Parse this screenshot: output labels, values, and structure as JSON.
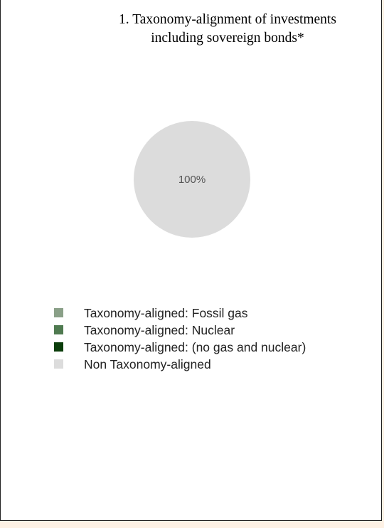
{
  "chart_data": {
    "type": "pie",
    "title_lines": [
      "1. Taxonomy-alignment of investments",
      "including sovereign bonds*"
    ],
    "slices": [
      {
        "label": "Taxonomy-aligned: Fossil gas",
        "value": 0,
        "color": "#8aa088"
      },
      {
        "label": "Taxonomy-aligned: Nuclear",
        "value": 0,
        "color": "#4f7a50"
      },
      {
        "label": "Taxonomy-aligned: (no gas and nuclear)",
        "value": 0,
        "color": "#0b3d0b"
      },
      {
        "label": "Non Taxonomy-aligned",
        "value": 100,
        "color": "#dcdcdc"
      }
    ],
    "data_labels": [
      "100%"
    ],
    "legend_position": "bottom-left"
  }
}
